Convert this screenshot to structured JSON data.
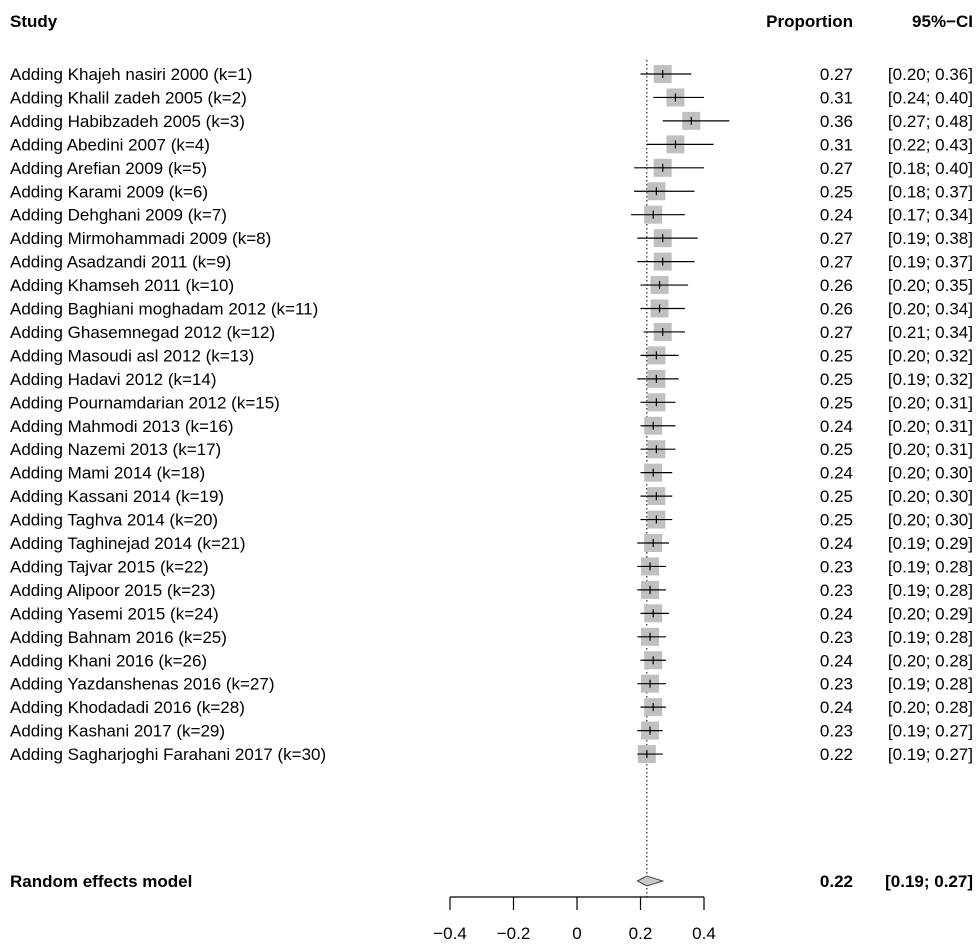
{
  "chart_data": {
    "type": "forest",
    "columns": {
      "study": "Study",
      "proportion": "Proportion",
      "ci": "95%−CI"
    },
    "studies": [
      {
        "label": "Adding Khajeh nasiri 2000 (k=1)",
        "est": 0.27,
        "lo": 0.2,
        "hi": 0.36,
        "est_text": "0.27",
        "ci_text": "[0.20; 0.36]"
      },
      {
        "label": "Adding Khalil zadeh 2005 (k=2)",
        "est": 0.31,
        "lo": 0.24,
        "hi": 0.4,
        "est_text": "0.31",
        "ci_text": "[0.24; 0.40]"
      },
      {
        "label": "Adding Habibzadeh 2005 (k=3)",
        "est": 0.36,
        "lo": 0.27,
        "hi": 0.48,
        "est_text": "0.36",
        "ci_text": "[0.27; 0.48]"
      },
      {
        "label": "Adding Abedini 2007 (k=4)",
        "est": 0.31,
        "lo": 0.22,
        "hi": 0.43,
        "est_text": "0.31",
        "ci_text": "[0.22; 0.43]"
      },
      {
        "label": "Adding Arefian 2009 (k=5)",
        "est": 0.27,
        "lo": 0.18,
        "hi": 0.4,
        "est_text": "0.27",
        "ci_text": "[0.18; 0.40]"
      },
      {
        "label": "Adding Karami 2009 (k=6)",
        "est": 0.25,
        "lo": 0.18,
        "hi": 0.37,
        "est_text": "0.25",
        "ci_text": "[0.18; 0.37]"
      },
      {
        "label": "Adding Dehghani 2009 (k=7)",
        "est": 0.24,
        "lo": 0.17,
        "hi": 0.34,
        "est_text": "0.24",
        "ci_text": "[0.17; 0.34]"
      },
      {
        "label": "Adding Mirmohammadi 2009 (k=8)",
        "est": 0.27,
        "lo": 0.19,
        "hi": 0.38,
        "est_text": "0.27",
        "ci_text": "[0.19; 0.38]"
      },
      {
        "label": "Adding Asadzandi 2011 (k=9)",
        "est": 0.27,
        "lo": 0.19,
        "hi": 0.37,
        "est_text": "0.27",
        "ci_text": "[0.19; 0.37]"
      },
      {
        "label": "Adding Khamseh 2011 (k=10)",
        "est": 0.26,
        "lo": 0.2,
        "hi": 0.35,
        "est_text": "0.26",
        "ci_text": "[0.20; 0.35]"
      },
      {
        "label": "Adding Baghiani moghadam 2012 (k=11)",
        "est": 0.26,
        "lo": 0.2,
        "hi": 0.34,
        "est_text": "0.26",
        "ci_text": "[0.20; 0.34]"
      },
      {
        "label": "Adding Ghasemnegad 2012 (k=12)",
        "est": 0.27,
        "lo": 0.21,
        "hi": 0.34,
        "est_text": "0.27",
        "ci_text": "[0.21; 0.34]"
      },
      {
        "label": "Adding Masoudi asl 2012 (k=13)",
        "est": 0.25,
        "lo": 0.2,
        "hi": 0.32,
        "est_text": "0.25",
        "ci_text": "[0.20; 0.32]"
      },
      {
        "label": "Adding Hadavi 2012 (k=14)",
        "est": 0.25,
        "lo": 0.19,
        "hi": 0.32,
        "est_text": "0.25",
        "ci_text": "[0.19; 0.32]"
      },
      {
        "label": "Adding Pournamdarian 2012 (k=15)",
        "est": 0.25,
        "lo": 0.2,
        "hi": 0.31,
        "est_text": "0.25",
        "ci_text": "[0.20; 0.31]"
      },
      {
        "label": "Adding Mahmodi 2013 (k=16)",
        "est": 0.24,
        "lo": 0.2,
        "hi": 0.31,
        "est_text": "0.24",
        "ci_text": "[0.20; 0.31]"
      },
      {
        "label": "Adding Nazemi 2013 (k=17)",
        "est": 0.25,
        "lo": 0.2,
        "hi": 0.31,
        "est_text": "0.25",
        "ci_text": "[0.20; 0.31]"
      },
      {
        "label": "Adding Mami 2014 (k=18)",
        "est": 0.24,
        "lo": 0.2,
        "hi": 0.3,
        "est_text": "0.24",
        "ci_text": "[0.20; 0.30]"
      },
      {
        "label": "Adding Kassani 2014 (k=19)",
        "est": 0.25,
        "lo": 0.2,
        "hi": 0.3,
        "est_text": "0.25",
        "ci_text": "[0.20; 0.30]"
      },
      {
        "label": "Adding Taghva 2014 (k=20)",
        "est": 0.25,
        "lo": 0.2,
        "hi": 0.3,
        "est_text": "0.25",
        "ci_text": "[0.20; 0.30]"
      },
      {
        "label": "Adding Taghinejad 2014 (k=21)",
        "est": 0.24,
        "lo": 0.19,
        "hi": 0.29,
        "est_text": "0.24",
        "ci_text": "[0.19; 0.29]"
      },
      {
        "label": "Adding Tajvar 2015 (k=22)",
        "est": 0.23,
        "lo": 0.19,
        "hi": 0.28,
        "est_text": "0.23",
        "ci_text": "[0.19; 0.28]"
      },
      {
        "label": "Adding Alipoor 2015 (k=23)",
        "est": 0.23,
        "lo": 0.19,
        "hi": 0.28,
        "est_text": "0.23",
        "ci_text": "[0.19; 0.28]"
      },
      {
        "label": "Adding Yasemi 2015 (k=24)",
        "est": 0.24,
        "lo": 0.2,
        "hi": 0.29,
        "est_text": "0.24",
        "ci_text": "[0.20; 0.29]"
      },
      {
        "label": "Adding Bahnam 2016 (k=25)",
        "est": 0.23,
        "lo": 0.19,
        "hi": 0.28,
        "est_text": "0.23",
        "ci_text": "[0.19; 0.28]"
      },
      {
        "label": "Adding Khani 2016 (k=26)",
        "est": 0.24,
        "lo": 0.2,
        "hi": 0.28,
        "est_text": "0.24",
        "ci_text": "[0.20; 0.28]"
      },
      {
        "label": "Adding Yazdanshenas 2016 (k=27)",
        "est": 0.23,
        "lo": 0.19,
        "hi": 0.28,
        "est_text": "0.23",
        "ci_text": "[0.19; 0.28]"
      },
      {
        "label": "Adding Khodadadi 2016 (k=28)",
        "est": 0.24,
        "lo": 0.2,
        "hi": 0.28,
        "est_text": "0.24",
        "ci_text": "[0.20; 0.28]"
      },
      {
        "label": "Adding Kashani  2017 (k=29)",
        "est": 0.23,
        "lo": 0.19,
        "hi": 0.27,
        "est_text": "0.23",
        "ci_text": "[0.19; 0.27]"
      },
      {
        "label": "Adding Sagharjoghi Farahani 2017 (k=30)",
        "est": 0.22,
        "lo": 0.19,
        "hi": 0.27,
        "est_text": "0.22",
        "ci_text": "[0.19; 0.27]"
      }
    ],
    "summary": {
      "label": "Random effects model",
      "est": 0.22,
      "lo": 0.19,
      "hi": 0.27,
      "est_text": "0.22",
      "ci_text": "[0.19; 0.27]"
    },
    "x_ticks": [
      -0.4,
      -0.2,
      0,
      0.2,
      0.4
    ],
    "x_tick_labels": [
      "−0.4",
      "−0.2",
      "0",
      "0.2",
      "0.4"
    ],
    "xlim": [
      -0.4,
      0.4
    ],
    "reference_line": 0.22,
    "colors": {
      "box": "#c0c0c0",
      "line": "#000000",
      "diamond_fill": "#c8c8c8"
    }
  }
}
